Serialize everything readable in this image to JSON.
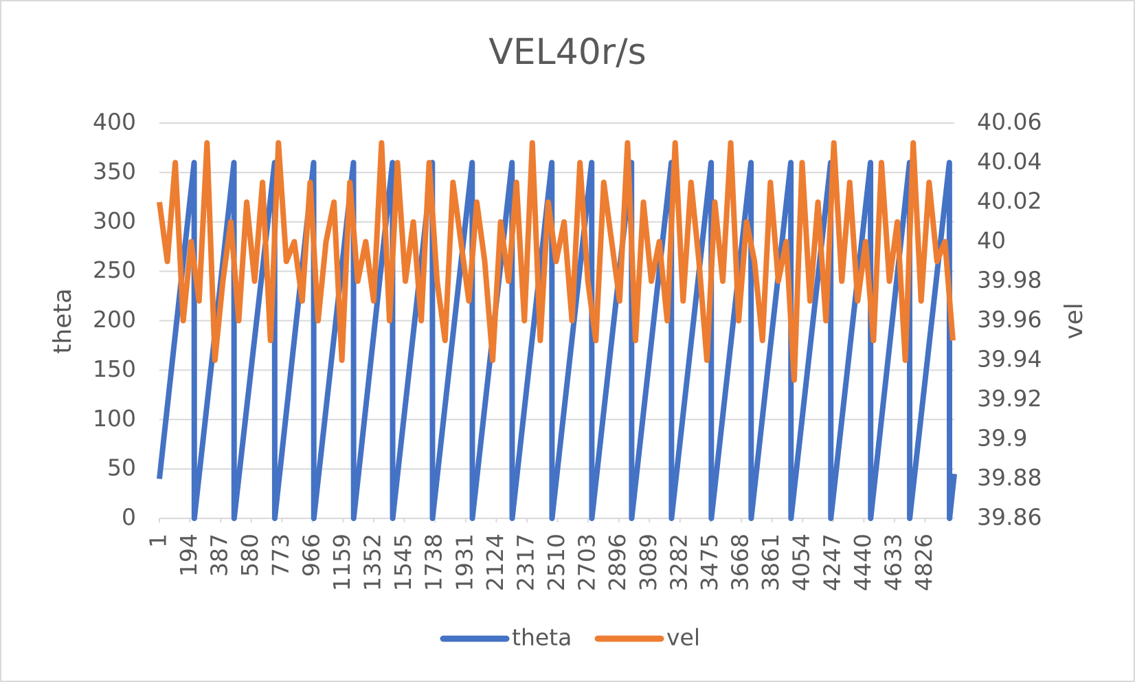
{
  "chart_data": {
    "type": "line",
    "title": "VEL40r/s",
    "y_label": "theta",
    "y2_label": "vel",
    "xlim": [
      1,
      5010
    ],
    "xticks": [
      1,
      194,
      387,
      580,
      773,
      966,
      1159,
      1352,
      1545,
      1738,
      1931,
      2124,
      2317,
      2510,
      2703,
      2896,
      3089,
      3282,
      3475,
      3668,
      3861,
      4054,
      4247,
      4440,
      4633,
      4826
    ],
    "ylim": [
      0,
      400
    ],
    "yticks": [
      0,
      50,
      100,
      150,
      200,
      250,
      300,
      350,
      400
    ],
    "y2lim": [
      39.86,
      40.06
    ],
    "y2ticks": [
      39.86,
      39.88,
      39.9,
      39.92,
      39.94,
      39.96,
      39.98,
      40,
      40.02,
      40.04,
      40.06
    ],
    "grid": true,
    "legend": "bottom",
    "series": [
      {
        "name": "theta",
        "color": "#4472c4",
        "x": [
          1,
          220,
          221,
          471,
          472,
          727,
          728,
          973,
          974,
          1224,
          1225,
          1470,
          1471,
          1721,
          1722,
          1972,
          1973,
          2223,
          2224,
          2474,
          2475,
          2725,
          2726,
          2976,
          2977,
          3227,
          3228,
          3478,
          3479,
          3729,
          3730,
          3980,
          3981,
          4231,
          4232,
          4482,
          4483,
          4728,
          4729,
          4979,
          4980,
          5010
        ],
        "values": [
          40,
          360,
          0,
          360,
          0,
          360,
          0,
          360,
          0,
          360,
          0,
          360,
          0,
          360,
          0,
          360,
          0,
          360,
          0,
          360,
          0,
          360,
          0,
          360,
          0,
          360,
          0,
          360,
          0,
          360,
          0,
          360,
          0,
          360,
          0,
          360,
          0,
          360,
          0,
          360,
          0,
          45
        ]
      },
      {
        "name": "vel",
        "color": "#ed7d31",
        "axis": "y2",
        "x": [
          1,
          51,
          101,
          151,
          201,
          251,
          301,
          351,
          401,
          451,
          501,
          551,
          601,
          651,
          701,
          751,
          801,
          851,
          901,
          951,
          1001,
          1051,
          1101,
          1151,
          1201,
          1251,
          1301,
          1351,
          1401,
          1451,
          1501,
          1551,
          1601,
          1651,
          1701,
          1751,
          1801,
          1851,
          1901,
          1951,
          2001,
          2051,
          2101,
          2151,
          2201,
          2251,
          2301,
          2351,
          2401,
          2451,
          2501,
          2551,
          2601,
          2651,
          2701,
          2751,
          2801,
          2851,
          2901,
          2951,
          3001,
          3051,
          3101,
          3151,
          3201,
          3251,
          3301,
          3351,
          3401,
          3451,
          3501,
          3551,
          3601,
          3651,
          3701,
          3751,
          3801,
          3851,
          3901,
          3951,
          4001,
          4051,
          4101,
          4151,
          4201,
          4251,
          4301,
          4351,
          4401,
          4451,
          4501,
          4551,
          4601,
          4651,
          4701,
          4751,
          4801,
          4851,
          4901,
          4951,
          5001
        ],
        "values": [
          40.02,
          39.99,
          40.04,
          39.96,
          40.0,
          39.97,
          40.05,
          39.94,
          39.98,
          40.01,
          39.96,
          40.02,
          39.98,
          40.03,
          39.95,
          40.05,
          39.99,
          40.0,
          39.97,
          40.03,
          39.96,
          40.0,
          40.02,
          39.94,
          40.03,
          39.98,
          40.0,
          39.97,
          40.05,
          39.96,
          40.04,
          39.98,
          40.01,
          39.96,
          40.04,
          39.98,
          39.95,
          40.03,
          40.0,
          39.97,
          40.02,
          39.99,
          39.94,
          40.01,
          39.98,
          40.03,
          39.96,
          40.05,
          39.95,
          40.02,
          39.99,
          40.01,
          39.96,
          40.04,
          39.98,
          39.95,
          40.03,
          40.0,
          39.97,
          40.05,
          39.95,
          40.02,
          39.98,
          40.0,
          39.96,
          40.05,
          39.97,
          40.03,
          39.99,
          39.94,
          40.02,
          39.98,
          40.05,
          39.96,
          40.01,
          39.99,
          39.95,
          40.03,
          39.98,
          40.0,
          39.93,
          40.04,
          39.97,
          40.02,
          39.96,
          40.05,
          39.98,
          40.03,
          39.97,
          40.0,
          39.95,
          40.04,
          39.98,
          40.01,
          39.94,
          40.05,
          39.97,
          40.03,
          39.99,
          40.0,
          39.95
        ]
      }
    ]
  }
}
